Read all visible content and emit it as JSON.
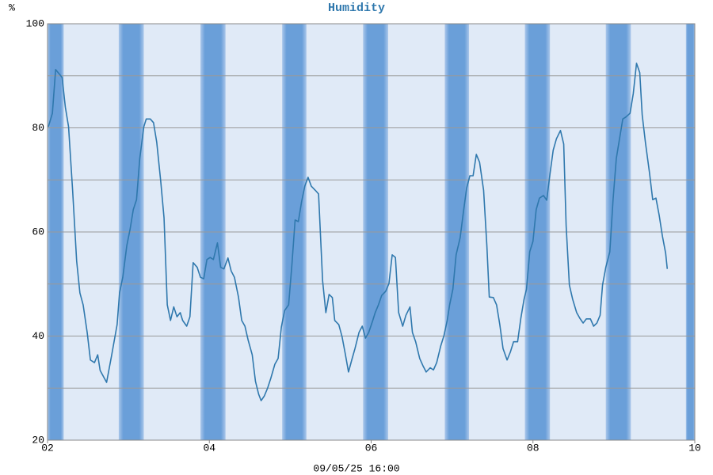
{
  "chart_data": {
    "type": "line",
    "title": "Humidity",
    "y_label": "%",
    "x_label": "09/05/25 16:00",
    "xlim": [
      2,
      10
    ],
    "xticks": [
      {
        "value": 2,
        "label": "02"
      },
      {
        "value": 4,
        "label": "04"
      },
      {
        "value": 6,
        "label": "06"
      },
      {
        "value": 8,
        "label": "08"
      },
      10
    ],
    "ylim": [
      20,
      100
    ],
    "yticks": [
      20,
      40,
      60,
      80,
      100
    ],
    "minor_yticks": [
      30,
      50,
      70,
      90
    ],
    "grid": true,
    "background_color": "#e0eaf7",
    "shade_color": "#6a9fd9",
    "shaded_ranges": [
      [
        2,
        2.2
      ],
      [
        2.88,
        3.19
      ],
      [
        3.89,
        4.2
      ],
      [
        4.9,
        5.2
      ],
      [
        5.9,
        6.21
      ],
      [
        6.91,
        7.21
      ],
      [
        7.9,
        8.21
      ],
      [
        8.9,
        9.21
      ],
      [
        9.89,
        10
      ]
    ],
    "series": [
      {
        "color": "#2f78ad",
        "x": [
          2.01,
          2.06,
          2.1,
          2.18,
          2.22,
          2.26,
          2.31,
          2.36,
          2.4,
          2.44,
          2.49,
          2.53,
          2.58,
          2.62,
          2.65,
          2.73,
          2.79,
          2.86,
          2.89,
          2.93,
          2.98,
          3.02,
          3.06,
          3.1,
          3.14,
          3.19,
          3.22,
          3.27,
          3.31,
          3.35,
          3.4,
          3.44,
          3.48,
          3.52,
          3.56,
          3.6,
          3.64,
          3.67,
          3.72,
          3.76,
          3.8,
          3.85,
          3.89,
          3.93,
          3.97,
          4.01,
          4.05,
          4.1,
          4.14,
          4.18,
          4.23,
          4.27,
          4.31,
          4.36,
          4.4,
          4.44,
          4.48,
          4.53,
          4.57,
          4.61,
          4.64,
          4.68,
          4.72,
          4.76,
          4.81,
          4.85,
          4.89,
          4.93,
          4.98,
          5.02,
          5.06,
          5.1,
          5.14,
          5.18,
          5.22,
          5.26,
          5.31,
          5.35,
          5.4,
          5.44,
          5.48,
          5.52,
          5.55,
          5.6,
          5.64,
          5.68,
          5.72,
          5.76,
          5.8,
          5.85,
          5.89,
          5.93,
          5.97,
          6.02,
          6.05,
          6.09,
          6.13,
          6.18,
          6.22,
          6.26,
          6.3,
          6.34,
          6.39,
          6.43,
          6.48,
          6.51,
          6.55,
          6.6,
          6.64,
          6.68,
          6.73,
          6.77,
          6.81,
          6.86,
          6.9,
          6.94,
          6.97,
          7.01,
          7.05,
          7.1,
          7.14,
          7.18,
          7.22,
          7.26,
          7.3,
          7.34,
          7.39,
          7.43,
          7.46,
          7.51,
          7.55,
          7.59,
          7.63,
          7.68,
          7.72,
          7.76,
          7.81,
          7.85,
          7.89,
          7.92,
          7.96,
          8.0,
          8.04,
          8.08,
          8.13,
          8.17,
          8.21,
          8.25,
          8.29,
          8.34,
          8.38,
          8.41,
          8.45,
          8.49,
          8.54,
          8.58,
          8.62,
          8.66,
          8.71,
          8.75,
          8.79,
          8.83,
          8.86,
          8.9,
          8.95,
          8.99,
          9.03,
          9.07,
          9.11,
          9.15,
          9.2,
          9.24,
          9.28,
          9.32,
          9.35,
          9.39,
          9.44,
          9.48,
          9.52,
          9.56,
          9.6,
          9.64,
          9.66
        ],
        "values": [
          80.2,
          82.8,
          91.2,
          89.7,
          84,
          80.2,
          68,
          54.4,
          48.3,
          46,
          40.7,
          35.4,
          34.9,
          36.4,
          33.4,
          31.1,
          36.1,
          42.2,
          48.3,
          51.3,
          57.4,
          60.5,
          64.3,
          66.2,
          74.1,
          80.2,
          81.7,
          81.7,
          81,
          77.2,
          69.6,
          62.7,
          46,
          43,
          45.6,
          43.7,
          44.5,
          43,
          41.9,
          43.7,
          54.1,
          53.2,
          51.3,
          51,
          54.7,
          55.1,
          54.7,
          57.9,
          53.2,
          52.9,
          55,
          52.5,
          51.3,
          47.5,
          43,
          41.9,
          39.2,
          36.4,
          31.3,
          28.8,
          27.6,
          28.5,
          30,
          31.9,
          34.6,
          35.7,
          41.7,
          44.9,
          46,
          53.6,
          62.3,
          62,
          65.8,
          68.8,
          70.5,
          68.8,
          68,
          67.3,
          50.6,
          44.5,
          48,
          47.4,
          43,
          42.2,
          39.9,
          36.6,
          33.1,
          35.4,
          37.6,
          40.7,
          41.9,
          39.6,
          40.7,
          43,
          44.5,
          46,
          47.8,
          48.6,
          50.1,
          55.6,
          55.1,
          44.5,
          41.9,
          44,
          45.6,
          40.7,
          38.9,
          35.7,
          34.3,
          33.1,
          33.9,
          33.5,
          34.9,
          38.1,
          40.1,
          43,
          46,
          49,
          55.6,
          58.9,
          63.8,
          68.4,
          70.8,
          70.8,
          74.9,
          73.4,
          68,
          57.4,
          47.5,
          47.4,
          46,
          42.2,
          37.6,
          35.4,
          36.9,
          38.9,
          38.9,
          43.4,
          47.1,
          49,
          56.2,
          58.2,
          64.3,
          66.5,
          67,
          66.1,
          71.1,
          75.7,
          77.9,
          79.5,
          76.9,
          61.2,
          49.8,
          47.1,
          44.5,
          43.4,
          42.5,
          43.3,
          43.3,
          41.9,
          42.5,
          44,
          49.8,
          53.2,
          56.2,
          66.2,
          74.1,
          77.9,
          81.7,
          82.1,
          82.8,
          86.6,
          92.4,
          90.6,
          82.5,
          77.2,
          71.4,
          66.2,
          66.5,
          63.2,
          59.2,
          55.9,
          52.9
        ]
      }
    ]
  }
}
